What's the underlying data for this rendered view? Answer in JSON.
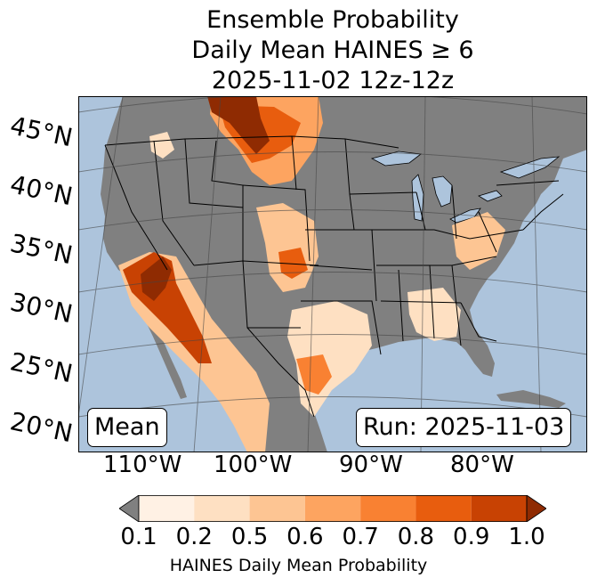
{
  "title": {
    "line1": "Ensemble Probability",
    "line2": "Daily Mean HAINES ≥ 6",
    "line3": "2025-11-02 12z-12z"
  },
  "map": {
    "ocean_color": "#adc4dc",
    "land_color": "#808080",
    "lat_labels": [
      "45°N",
      "40°N",
      "35°N",
      "30°N",
      "25°N",
      "20°N"
    ],
    "lon_labels": [
      "110°W",
      "100°W",
      "90°W",
      "80°W"
    ],
    "mean_label": "Mean",
    "run_label": "Run: 2025-11-03"
  },
  "colorbar": {
    "label": "HAINES Daily Mean Probability",
    "ticks": [
      "0.1",
      "0.2",
      "0.5",
      "0.6",
      "0.7",
      "0.8",
      "0.9",
      "1.0"
    ],
    "under_color": "#808080",
    "colors": [
      "#fff1e4",
      "#fee0c2",
      "#fdc593",
      "#fda460",
      "#f98132",
      "#e85d0e",
      "#c84203"
    ],
    "over_color": "#8f2b02"
  }
}
